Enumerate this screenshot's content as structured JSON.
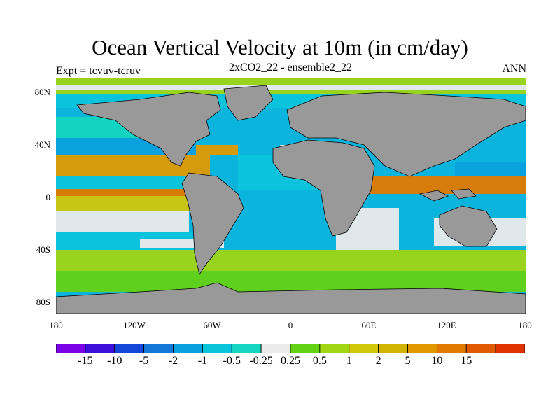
{
  "title": "Ocean Vertical Velocity at 10m (in cm/day)",
  "subtitle": "2xCO2_22 - ensemble2_22",
  "left_label": "Expt = tcvuv-tcruv",
  "right_label": "ANN",
  "map": {
    "land_color": "#999999",
    "ocean_neutral_color": "#ebebeb",
    "lat_ticks": [
      "80N",
      "40N",
      "0",
      "40S",
      "80S"
    ],
    "lon_ticks": [
      "180",
      "120W",
      "60W",
      "0",
      "60E",
      "120E",
      "180"
    ]
  },
  "colorbar": {
    "colors": [
      "#7a00e6",
      "#3b0fd9",
      "#1446d9",
      "#1478d9",
      "#0aa0e0",
      "#0ac4dc",
      "#14d6c0",
      "#ebebeb",
      "#64d214",
      "#a0d614",
      "#d2c80a",
      "#d2b400",
      "#e09a00",
      "#e07a00",
      "#e05a00",
      "#e03200"
    ],
    "labels": [
      "-15",
      "-10",
      "-5",
      "-2",
      "-1",
      "-0.5",
      "-0.25",
      "0.25",
      "0.5",
      "1",
      "2",
      "5",
      "10",
      "15"
    ]
  }
}
